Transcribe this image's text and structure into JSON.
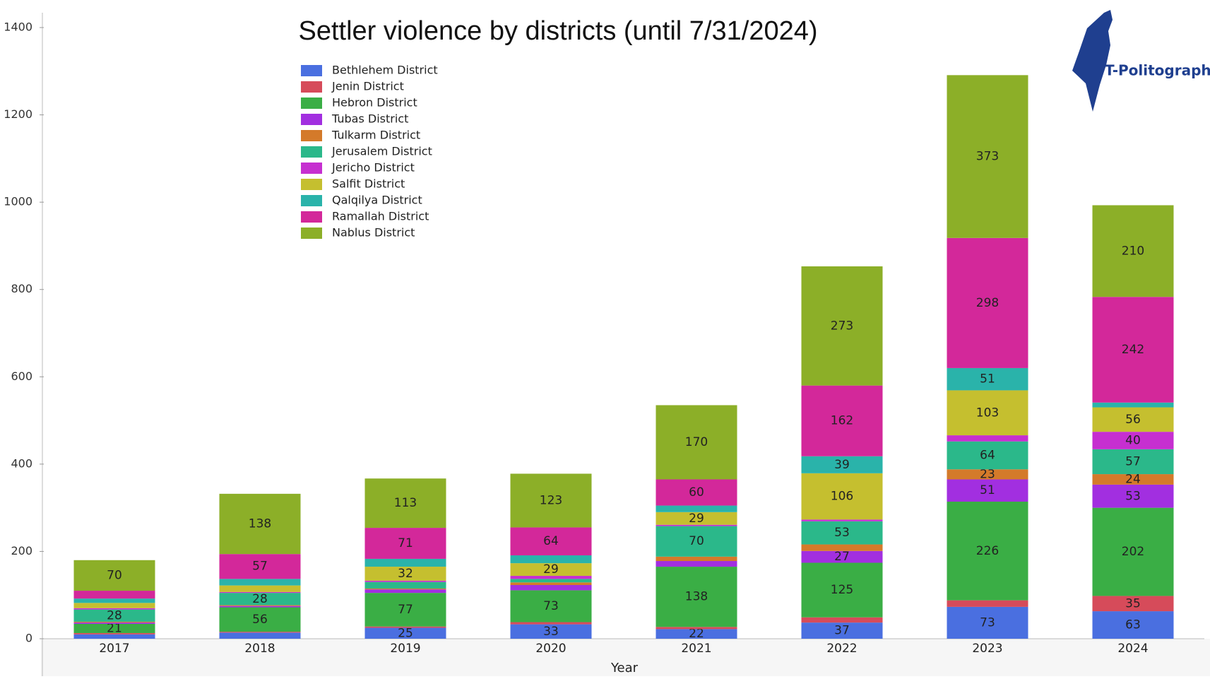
{
  "chart_data": {
    "type": "stacked_bar",
    "title": "Settler violence by districts (until 7/31/2024)",
    "x_label": "Year",
    "logo_text": "T-Politography",
    "categories": [
      "2017",
      "2018",
      "2019",
      "2020",
      "2021",
      "2022",
      "2023",
      "2024"
    ],
    "ylim": [
      0,
      1400
    ],
    "yticks": [
      0,
      200,
      400,
      600,
      800,
      1000,
      1200,
      1400
    ],
    "series": [
      {
        "name": "Bethlehem District",
        "color": "#4a6fe0",
        "values": [
          10,
          14,
          25,
          33,
          22,
          37,
          73,
          63
        ]
      },
      {
        "name": "Jenin District",
        "color": "#d64b5a",
        "values": [
          3,
          2,
          3,
          5,
          5,
          12,
          15,
          35
        ]
      },
      {
        "name": "Hebron District",
        "color": "#3aae45",
        "values": [
          21,
          56,
          77,
          73,
          138,
          125,
          226,
          202
        ]
      },
      {
        "name": "Tubas District",
        "color": "#a22fe0",
        "values": [
          3,
          3,
          8,
          12,
          13,
          27,
          51,
          53
        ]
      },
      {
        "name": "Tulkarm District",
        "color": "#d47a2a",
        "values": [
          2,
          2,
          2,
          6,
          10,
          15,
          23,
          24
        ]
      },
      {
        "name": "Jerusalem District",
        "color": "#2bb88a",
        "values": [
          28,
          28,
          15,
          8,
          70,
          53,
          64,
          57
        ]
      },
      {
        "name": "Jericho District",
        "color": "#c62fd0",
        "values": [
          3,
          2,
          3,
          7,
          3,
          4,
          14,
          40
        ]
      },
      {
        "name": "Salfit District",
        "color": "#c5bf2f",
        "values": [
          12,
          15,
          32,
          29,
          29,
          106,
          103,
          56
        ]
      },
      {
        "name": "Qalqilya District",
        "color": "#2ab3aa",
        "values": [
          10,
          15,
          18,
          18,
          15,
          39,
          51,
          11
        ]
      },
      {
        "name": "Ramallah District",
        "color": "#d3289a",
        "values": [
          18,
          57,
          71,
          64,
          60,
          162,
          298,
          242
        ]
      },
      {
        "name": "Nablus District",
        "color": "#8caf28",
        "values": [
          70,
          138,
          113,
          123,
          170,
          273,
          373,
          210
        ]
      }
    ]
  }
}
